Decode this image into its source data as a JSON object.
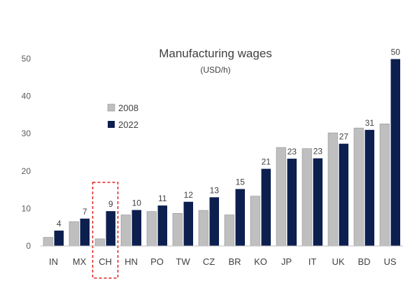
{
  "chart_data": {
    "type": "bar",
    "title": "Manufacturing wages",
    "subtitle": "(USD/h)",
    "categories": [
      "IN",
      "MX",
      "CH",
      "HN",
      "PO",
      "TW",
      "CZ",
      "BR",
      "KO",
      "JP",
      "IT",
      "UK",
      "BD",
      "US"
    ],
    "series": [
      {
        "name": "2008",
        "color": "#bfbfbf",
        "values": [
          2.3,
          6.5,
          1.9,
          8.3,
          9.2,
          8.7,
          9.5,
          8.3,
          13.3,
          26.3,
          26.0,
          30.2,
          31.5,
          32.6
        ]
      },
      {
        "name": "2022",
        "color": "#0c1f4f",
        "values": [
          4.1,
          7.3,
          9.3,
          9.6,
          10.8,
          11.8,
          13.0,
          15.2,
          20.6,
          23.3,
          23.4,
          27.3,
          31.0,
          49.9
        ]
      }
    ],
    "data_labels": [
      "4",
      "7",
      "9",
      "10",
      "11",
      "12",
      "13",
      "15",
      "21",
      "23",
      "23",
      "27",
      "31",
      "50"
    ],
    "yticks": [
      0,
      10,
      20,
      30,
      40,
      50
    ],
    "ylim": [
      0,
      50
    ],
    "grid": false,
    "legend_position": "upper-left",
    "highlight": {
      "category": "CH",
      "style": "red dashed box"
    }
  }
}
